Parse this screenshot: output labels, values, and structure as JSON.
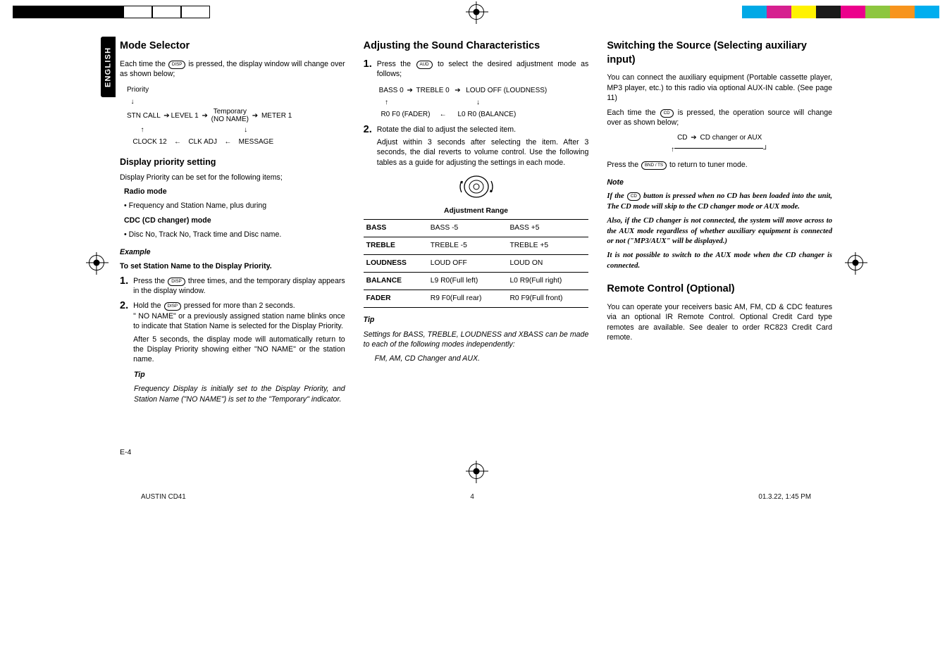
{
  "colorbars": {
    "left": [
      "#000000",
      "#000000",
      "#000000",
      "#000000",
      "#ffffff",
      "#ffffff",
      "#ffffff"
    ],
    "right": [
      "#00a9e6",
      "#d61f8f",
      "#fff200",
      "#1a1a1a",
      "#ec008c",
      "#8dc63f",
      "#f7941d",
      "#00aeef"
    ]
  },
  "sidebar_label": "ENGLISH",
  "col1": {
    "h_mode": "Mode Selector",
    "mode_intro_a": "Each time the ",
    "btn_disp": "DISP",
    "mode_intro_b": " is pressed, the display window will change over as shown below;",
    "flow": {
      "priority": "Priority",
      "stncall": "STN CALL",
      "level1": "LEVEL 1",
      "temporary": "Temporary",
      "noname": "(NO NAME)",
      "meter1": "METER 1",
      "clock12": "CLOCK 12",
      "clkadj": "CLK ADJ",
      "message": "MESSAGE"
    },
    "h_dps": "Display priority setting",
    "dps_intro": "Display Priority can be set for the following items;",
    "radio_hdr": "Radio mode",
    "radio_item": "• Frequency and Station Name, plus during",
    "cdc_hdr": "CDC (CD changer) mode",
    "cdc_item": "• Disc No, Track No, Track time and Disc name.",
    "example": "Example",
    "example_sub": "To set Station Name to the Display Priority.",
    "step1_a": "Press the ",
    "step1_b": " three times, and the temporary display appears in the display window.",
    "step2_a": "Hold the ",
    "step2_b": " pressed for more than 2 seconds.",
    "step2_c": "\" NO NAME\" or a previously assigned station name blinks once to indicate that Station Name is selected for the Display Priority.",
    "step2_d": "After 5 seconds, the display mode will automatically return to the Display Priority showing either \"NO NAME\" or the station name.",
    "tip_hdr": "Tip",
    "tip_body": "Frequency Display is initially set to the Display Priority, and Station Name (\"NO NAME\") is set to the \"Temporary\" indicator."
  },
  "col2": {
    "h_adj": "Adjusting the Sound Characteristics",
    "s1_a": "Press the ",
    "btn_aud": "AUD",
    "s1_b": " to select the desired adjustment mode as follows;",
    "flow": {
      "bass0": "BASS 0",
      "treble0": "TREBLE 0",
      "loudoff": "LOUD OFF (LOUDNESS)",
      "fader": "R0 F0 (FADER)",
      "balance": "L0 R0 (BALANCE)"
    },
    "s2_a": "Rotate the dial to adjust the selected item.",
    "s2_b": "Adjust within 3 seconds after selecting the item. After 3 seconds, the dial reverts to volume control. Use the following tables as a guide for adjusting the settings in each mode.",
    "range_hdr": "Adjustment Range",
    "table": [
      [
        "BASS",
        "BASS -5",
        "BASS +5"
      ],
      [
        "TREBLE",
        "TREBLE -5",
        "TREBLE +5"
      ],
      [
        "LOUDNESS",
        "LOUD OFF",
        "LOUD ON"
      ],
      [
        "BALANCE",
        "L9 R0(Full left)",
        "L0 R9(Full right)"
      ],
      [
        "FADER",
        "R9 F0(Full rear)",
        "R0 F9(Full front)"
      ]
    ],
    "tip_hdr": "Tip",
    "tip_a": "Settings for BASS, TREBLE, LOUDNESS and XBASS can be made to each of the following modes independently:",
    "tip_b": "FM, AM, CD Changer and AUX."
  },
  "col3": {
    "h_src": "Switching the Source (Selecting auxiliary input)",
    "p1": "You can connect the auxiliary equipment (Portable cassette player, MP3 player, etc.) to this radio via optional AUX-IN cable. (See page 11)",
    "p2_a": "Each time the ",
    "btn_cd": "CD",
    "p2_b": " is pressed, the operation source will change over as shown below;",
    "flow_cd": "CD",
    "flow_aux": "CD changer or AUX",
    "p3_a": "Press the ",
    "btn_bnd": "BND / TS",
    "p3_b": " to return to tuner mode.",
    "note_hdr": "Note",
    "note_a": "If the ",
    "note_b": " button is pressed when no CD has been loaded into the unit, The CD mode will skip to the CD changer mode or AUX mode.",
    "note_c": "Also, if the CD changer is not connected, the system will move across to the AUX mode regardless of whether auxiliary equipment is connected or not (\"MP3/AUX\" will be displayed.)",
    "note_d": "It is not possible to switch to the AUX mode when the CD changer is connected.",
    "h_remote": "Remote Control (Optional)",
    "remote_body": "You can operate your receivers basic AM, FM, CD & CDC features via an optional IR Remote Control. Optional Credit Card type remotes are available. See dealer to order RC823 Credit Card remote."
  },
  "pagenum": "E-4",
  "footer": {
    "left": "AUSTIN CD41",
    "mid": "4",
    "right": "01.3.22, 1:45 PM"
  }
}
